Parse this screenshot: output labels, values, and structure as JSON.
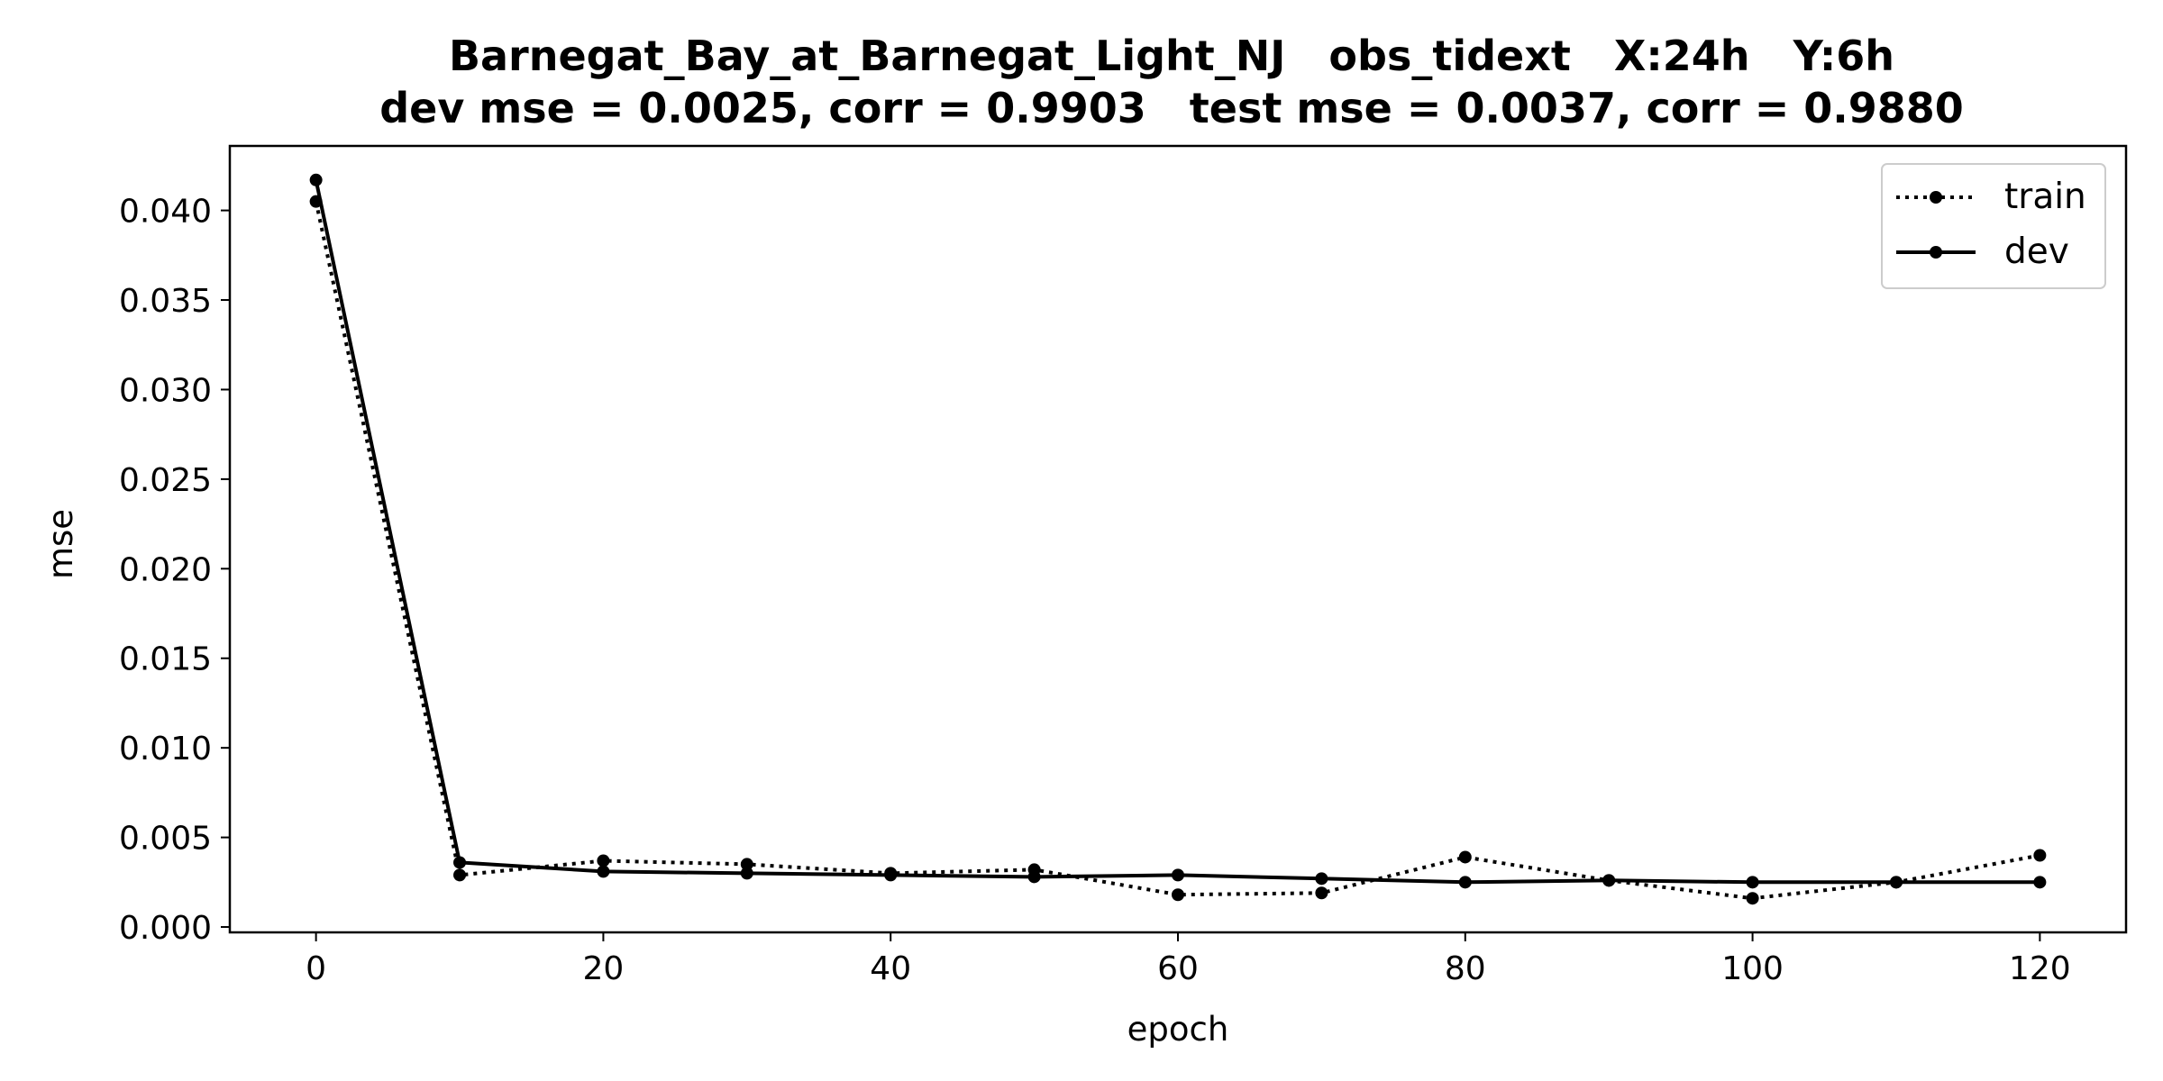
{
  "chart_data": {
    "type": "line",
    "title": "Barnegat_Bay_at_Barnegat_Light_NJ   obs_tidext   X:24h   Y:6h",
    "subtitle": "dev mse = 0.0025, corr = 0.9903   test mse = 0.0037, corr = 0.9880",
    "xlabel": "epoch",
    "ylabel": "mse",
    "xlim": [
      -6,
      126
    ],
    "ylim": [
      -0.0003,
      0.0436
    ],
    "x_ticks": [
      0,
      20,
      40,
      60,
      80,
      100,
      120
    ],
    "y_ticks": [
      0.0,
      0.005,
      0.01,
      0.015,
      0.02,
      0.025,
      0.03,
      0.035,
      0.04
    ],
    "x_tick_labels": [
      "0",
      "20",
      "40",
      "60",
      "80",
      "100",
      "120"
    ],
    "y_tick_labels": [
      "0.000",
      "0.005",
      "0.010",
      "0.015",
      "0.020",
      "0.025",
      "0.030",
      "0.035",
      "0.040"
    ],
    "grid": false,
    "legend_position": "top-right",
    "x": [
      0,
      10,
      20,
      30,
      40,
      50,
      60,
      70,
      80,
      90,
      100,
      110,
      120
    ],
    "series": [
      {
        "name": "train",
        "line_style": "dotted",
        "marker": "circle",
        "color": "#000000",
        "values": [
          0.0405,
          0.0029,
          0.0037,
          0.0035,
          0.003,
          0.0032,
          0.0018,
          0.0019,
          0.0039,
          0.0026,
          0.0016,
          0.0025,
          0.004
        ]
      },
      {
        "name": "dev",
        "line_style": "solid",
        "marker": "circle",
        "color": "#000000",
        "values": [
          0.0417,
          0.0036,
          0.0031,
          0.003,
          0.0029,
          0.0028,
          0.0029,
          0.0027,
          0.0025,
          0.0026,
          0.0025,
          0.0025,
          0.0025
        ]
      }
    ]
  }
}
